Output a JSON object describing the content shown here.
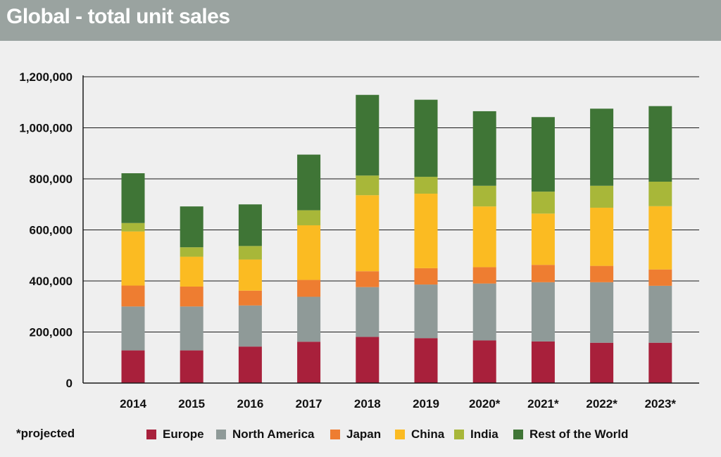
{
  "header": {
    "title": "Global - total unit sales"
  },
  "footnote": "*projected",
  "colors": {
    "header_bg": "#9aa3a0",
    "Europe": "#a8203b",
    "North America": "#8f9a98",
    "Japan": "#ee7d31",
    "China": "#fbbb22",
    "India": "#a8b739",
    "Rest of the World": "#3f7536"
  },
  "chart_data": {
    "type": "bar",
    "stacked": true,
    "title": "Global - total unit sales",
    "xlabel": "",
    "ylabel": "",
    "ylim": [
      0,
      1200000
    ],
    "yticks": [
      0,
      200000,
      400000,
      600000,
      800000,
      1000000,
      1200000
    ],
    "ytick_labels": [
      "0",
      "200,000",
      "400,000",
      "600,000",
      "800,000",
      "1,000,000",
      "1,200,000"
    ],
    "grid": "horizontal",
    "legend_position": "bottom",
    "categories": [
      "2014",
      "2015",
      "2016",
      "2017",
      "2018",
      "2019",
      "2020*",
      "2021*",
      "2022*",
      "2023*"
    ],
    "series": [
      {
        "name": "Europe",
        "color": "#a8203b",
        "values": [
          128000,
          128000,
          143000,
          162000,
          181000,
          176000,
          167000,
          163000,
          158000,
          158000
        ]
      },
      {
        "name": "North America",
        "color": "#8f9a98",
        "values": [
          172000,
          172000,
          161000,
          176000,
          195000,
          210000,
          223000,
          232000,
          237000,
          223000
        ]
      },
      {
        "name": "Japan",
        "color": "#ee7d31",
        "values": [
          82000,
          78000,
          58000,
          66000,
          62000,
          64000,
          64000,
          68000,
          64000,
          64000
        ]
      },
      {
        "name": "China",
        "color": "#fbbb22",
        "values": [
          212000,
          117000,
          122000,
          214000,
          298000,
          292000,
          238000,
          201000,
          228000,
          248000
        ]
      },
      {
        "name": "India",
        "color": "#a8b739",
        "values": [
          33000,
          37000,
          53000,
          59000,
          77000,
          66000,
          81000,
          86000,
          86000,
          96000
        ]
      },
      {
        "name": "Rest of the World",
        "color": "#3f7536",
        "values": [
          195000,
          160000,
          163000,
          218000,
          316000,
          302000,
          292000,
          292000,
          302000,
          296000
        ]
      }
    ]
  }
}
